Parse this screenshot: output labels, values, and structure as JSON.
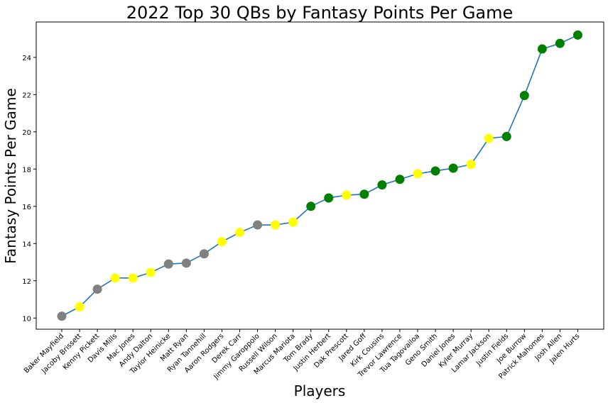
{
  "chart_data": {
    "type": "line",
    "title": "2022 Top 30 QBs by Fantasy Points Per Game",
    "xlabel": "Players",
    "ylabel": "Fantasy Points Per Game",
    "ylim": [
      9.4,
      25.9
    ],
    "yticks": [
      10,
      12,
      14,
      16,
      18,
      20,
      22,
      24
    ],
    "grid": false,
    "line_color": "#1f77b4",
    "point_colors": {
      "gray": "#808080",
      "yellow": "#ffff00",
      "green": "#008000"
    },
    "categories": [
      "Baker Mayfield",
      "Jacoby Brissett",
      "Kenny Pickett",
      "Davis Mills",
      "Mac Jones",
      "Andy Dalton",
      "Taylor Heinicke",
      "Matt Ryan",
      "Ryan Tannehill",
      "Aaron Rodgers",
      "Derek Carr",
      "Jimmy Garoppolo",
      "Russell Wilson",
      "Marcus Mariota",
      "Tom Brady",
      "Justin Herbert",
      "Dak Prescott",
      "Jared Goff",
      "Kirk Cousins",
      "Trevor Lawrence",
      "Tua Tagovailoa",
      "Geno Smith",
      "Daniel Jones",
      "Kyler Murray",
      "Lamar Jackson",
      "Justin Fields",
      "Joe Burrow",
      "Patrick Mahomes",
      "Josh Allen",
      "Jalen Hurts"
    ],
    "values": [
      10.1,
      10.6,
      11.55,
      12.15,
      12.15,
      12.45,
      12.9,
      12.95,
      13.45,
      14.1,
      14.6,
      15.0,
      15.0,
      15.15,
      16.0,
      16.45,
      16.6,
      16.65,
      17.15,
      17.45,
      17.75,
      17.9,
      18.05,
      18.25,
      19.65,
      19.75,
      21.95,
      24.45,
      24.75,
      25.2
    ],
    "point_color_keys": [
      "gray",
      "yellow",
      "gray",
      "yellow",
      "yellow",
      "yellow",
      "gray",
      "gray",
      "gray",
      "yellow",
      "yellow",
      "gray",
      "yellow",
      "yellow",
      "green",
      "green",
      "yellow",
      "green",
      "green",
      "green",
      "yellow",
      "green",
      "green",
      "yellow",
      "yellow",
      "green",
      "green",
      "green",
      "green",
      "green"
    ]
  }
}
